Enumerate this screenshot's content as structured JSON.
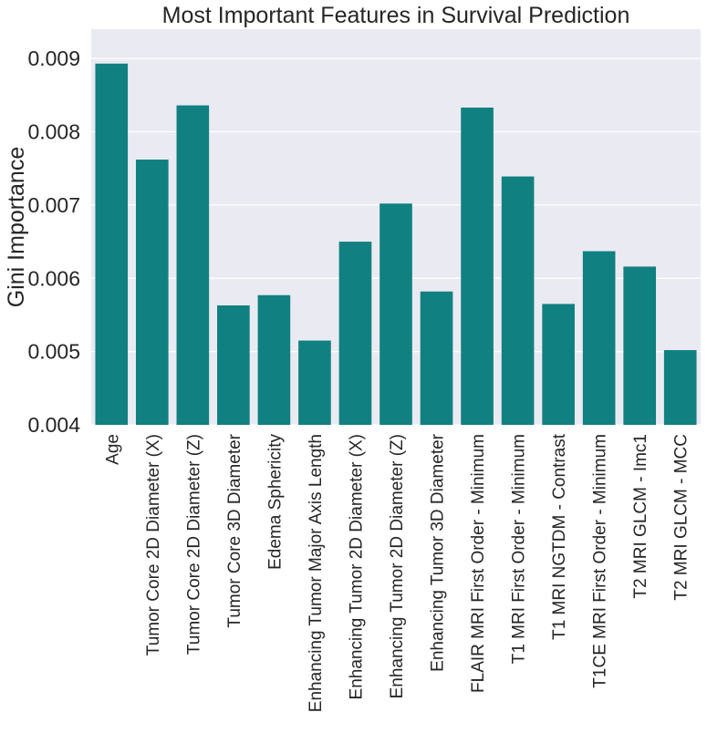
{
  "chart_data": {
    "type": "bar",
    "title": "Most Important Features in Survival Prediction",
    "xlabel": "",
    "ylabel": "Gini Importance",
    "ylim": [
      0.004,
      0.0094
    ],
    "yticks": [
      "0.004",
      "0.005",
      "0.006",
      "0.007",
      "0.008",
      "0.009"
    ],
    "grid": true,
    "bar_color": "#108080",
    "background_color": "#eaeaf2",
    "categories": [
      "Age",
      "Tumor Core 2D Diameter (X)",
      "Tumor Core 2D Diameter (Z)",
      "Tumor Core 3D Diameter",
      "Edema Sphericity",
      "Enhancing Tumor Major Axis Length",
      "Enhancing Tumor 2D Diameter (X)",
      "Enhancing Tumor 2D Diameter (Z)",
      "Enhancing Tumor 3D Diameter",
      "FLAIR MRI First Order - Minimum",
      "T1 MRI First Order - Minimum",
      "T1 MRI NGTDM - Contrast",
      "T1CE MRI First Order - Minimum",
      "T2 MRI GLCM - Imc1",
      "T2 MRI GLCM - MCC"
    ],
    "values": [
      0.00893,
      0.00762,
      0.00836,
      0.00563,
      0.00577,
      0.00515,
      0.0065,
      0.00702,
      0.00582,
      0.00833,
      0.00739,
      0.00565,
      0.00637,
      0.00616,
      0.00502
    ]
  }
}
